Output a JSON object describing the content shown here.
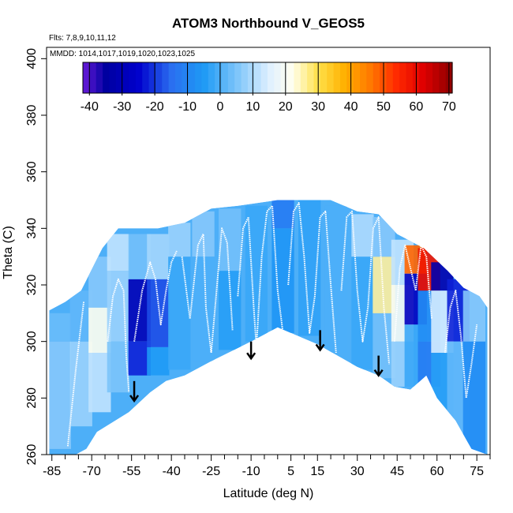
{
  "chart_data": {
    "type": "heatmap",
    "title": "ATOM3 Northbound V_GEOS5",
    "flights_label": "Flts: 7,8,9,10,11,12",
    "dates_label": "MMDD: 1014,1017,1019,1020,1023,1025",
    "xlabel": "Latitude (deg N)",
    "ylabel": "Theta (C)",
    "xlim": [
      -87,
      80
    ],
    "ylim": [
      260,
      404
    ],
    "x_ticks": [
      "-85",
      "-70",
      "-55",
      "-40",
      "-25",
      "-10",
      "5",
      "15",
      "30",
      "45",
      "60",
      "75"
    ],
    "x_tick_values": [
      -85,
      -70,
      -55,
      -40,
      -25,
      -10,
      5,
      15,
      30,
      45,
      60,
      75
    ],
    "y_ticks": [
      "260",
      "280",
      "300",
      "320",
      "340",
      "360",
      "380",
      "400"
    ],
    "y_tick_values": [
      260,
      280,
      300,
      320,
      340,
      360,
      380,
      400
    ],
    "colorbar": {
      "range": [
        -42,
        71
      ],
      "ticks": [
        "-40",
        "-30",
        "-20",
        "-10",
        "0",
        "10",
        "20",
        "30",
        "40",
        "50",
        "60",
        "70"
      ],
      "tick_values": [
        -40,
        -30,
        -20,
        -10,
        0,
        10,
        20,
        30,
        40,
        50,
        60,
        70
      ],
      "stops": [
        {
          "v": -42,
          "c": "#6a1bd9"
        },
        {
          "v": -35,
          "c": "#0000a0"
        },
        {
          "v": -25,
          "c": "#0000cc"
        },
        {
          "v": -15,
          "c": "#2a6ef0"
        },
        {
          "v": -5,
          "c": "#1e9af5"
        },
        {
          "v": 5,
          "c": "#7cc4fa"
        },
        {
          "v": 15,
          "c": "#dff0ff"
        },
        {
          "v": 22,
          "c": "#fffff0"
        },
        {
          "v": 30,
          "c": "#ffe14a"
        },
        {
          "v": 38,
          "c": "#ffb000"
        },
        {
          "v": 46,
          "c": "#ff7800"
        },
        {
          "v": 54,
          "c": "#ff2a00"
        },
        {
          "v": 62,
          "c": "#e00000"
        },
        {
          "v": 71,
          "c": "#8b0000"
        }
      ]
    },
    "envelope_top": [
      [
        -86,
        311
      ],
      [
        -80,
        314
      ],
      [
        -74,
        318
      ],
      [
        -66,
        333
      ],
      [
        -60,
        340
      ],
      [
        -45,
        340
      ],
      [
        -35,
        342
      ],
      [
        -25,
        347
      ],
      [
        -15,
        348
      ],
      [
        0,
        350
      ],
      [
        20,
        350
      ],
      [
        30,
        346
      ],
      [
        38,
        345
      ],
      [
        45,
        338
      ],
      [
        55,
        333
      ],
      [
        64,
        325
      ],
      [
        70,
        319
      ],
      [
        76,
        316
      ],
      [
        79,
        312
      ]
    ],
    "envelope_bottom": [
      [
        79,
        260
      ],
      [
        76,
        261
      ],
      [
        73,
        262
      ],
      [
        67,
        272
      ],
      [
        60,
        280
      ],
      [
        56,
        288
      ],
      [
        50,
        283
      ],
      [
        44,
        284
      ],
      [
        38,
        288
      ],
      [
        30,
        291
      ],
      [
        15,
        299
      ],
      [
        0,
        305
      ],
      [
        -10,
        300
      ],
      [
        -25,
        293
      ],
      [
        -35,
        288
      ],
      [
        -42,
        286
      ],
      [
        -48,
        282
      ],
      [
        -56,
        275
      ],
      [
        -68,
        268
      ],
      [
        -72,
        262
      ],
      [
        -76,
        260
      ],
      [
        -86,
        260
      ]
    ],
    "field": [
      {
        "lon": -82,
        "th": [
          262,
          300
        ],
        "v": 6
      },
      {
        "lon": -82,
        "th": [
          300,
          310
        ],
        "v": 3
      },
      {
        "lon": -74,
        "th": [
          270,
          300
        ],
        "v": 8
      },
      {
        "lon": -74,
        "th": [
          300,
          318
        ],
        "v": 2
      },
      {
        "lon": -67,
        "th": [
          275,
          296
        ],
        "v": 12
      },
      {
        "lon": -67,
        "th": [
          296,
          312
        ],
        "v": 22
      },
      {
        "lon": -67,
        "th": [
          312,
          330
        ],
        "v": 6
      },
      {
        "lon": -60,
        "th": [
          282,
          300
        ],
        "v": 5
      },
      {
        "lon": -60,
        "th": [
          300,
          325
        ],
        "v": 8
      },
      {
        "lon": -60,
        "th": [
          325,
          338
        ],
        "v": 12
      },
      {
        "lon": -52,
        "th": [
          288,
          300
        ],
        "v": -22
      },
      {
        "lon": -52,
        "th": [
          300,
          322
        ],
        "v": -30
      },
      {
        "lon": -52,
        "th": [
          322,
          338
        ],
        "v": 4
      },
      {
        "lon": -45,
        "th": [
          288,
          298
        ],
        "v": -5
      },
      {
        "lon": -45,
        "th": [
          298,
          322
        ],
        "v": -18
      },
      {
        "lon": -45,
        "th": [
          322,
          338
        ],
        "v": 9
      },
      {
        "lon": -37,
        "th": [
          290,
          330
        ],
        "v": -2
      },
      {
        "lon": -37,
        "th": [
          330,
          342
        ],
        "v": 8
      },
      {
        "lon": -28,
        "th": [
          293,
          330
        ],
        "v": 0
      },
      {
        "lon": -28,
        "th": [
          330,
          346
        ],
        "v": 6
      },
      {
        "lon": -18,
        "th": [
          297,
          325
        ],
        "v": -4
      },
      {
        "lon": -18,
        "th": [
          325,
          347
        ],
        "v": 4
      },
      {
        "lon": -8,
        "th": [
          300,
          348
        ],
        "v": -2
      },
      {
        "lon": 2,
        "th": [
          303,
          340
        ],
        "v": -6
      },
      {
        "lon": 2,
        "th": [
          340,
          350
        ],
        "v": -12
      },
      {
        "lon": 12,
        "th": [
          302,
          350
        ],
        "v": -3
      },
      {
        "lon": 22,
        "th": [
          296,
          348
        ],
        "v": 0
      },
      {
        "lon": 32,
        "th": [
          290,
          330
        ],
        "v": -2
      },
      {
        "lon": 32,
        "th": [
          330,
          345
        ],
        "v": 10
      },
      {
        "lon": 40,
        "th": [
          287,
          310
        ],
        "v": 4
      },
      {
        "lon": 40,
        "th": [
          310,
          330
        ],
        "v": 26
      },
      {
        "lon": 40,
        "th": [
          330,
          344
        ],
        "v": 6
      },
      {
        "lon": 47,
        "th": [
          284,
          300
        ],
        "v": 8
      },
      {
        "lon": 47,
        "th": [
          300,
          320
        ],
        "v": 20
      },
      {
        "lon": 47,
        "th": [
          320,
          336
        ],
        "v": 12
      },
      {
        "lon": 52,
        "th": [
          284,
          306
        ],
        "v": -2
      },
      {
        "lon": 52,
        "th": [
          306,
          324
        ],
        "v": -28
      },
      {
        "lon": 52,
        "th": [
          324,
          334
        ],
        "v": 48
      },
      {
        "lon": 57,
        "th": [
          284,
          300
        ],
        "v": -12
      },
      {
        "lon": 57,
        "th": [
          300,
          318
        ],
        "v": -8
      },
      {
        "lon": 57,
        "th": [
          318,
          333
        ],
        "v": 58
      },
      {
        "lon": 62,
        "th": [
          270,
          296
        ],
        "v": -4
      },
      {
        "lon": 62,
        "th": [
          296,
          318
        ],
        "v": 14
      },
      {
        "lon": 62,
        "th": [
          318,
          328
        ],
        "v": -32
      },
      {
        "lon": 68,
        "th": [
          264,
          300
        ],
        "v": 2
      },
      {
        "lon": 68,
        "th": [
          300,
          322
        ],
        "v": -22
      },
      {
        "lon": 74,
        "th": [
          260,
          300
        ],
        "v": -8
      },
      {
        "lon": 74,
        "th": [
          300,
          318
        ],
        "v": 6
      }
    ],
    "flight_tracks": [
      [
        [
          -79,
          263
        ],
        [
          -76,
          290
        ],
        [
          -73,
          314
        ]
      ],
      [
        [
          -64,
          300
        ],
        [
          -62,
          316
        ],
        [
          -60,
          322
        ],
        [
          -58,
          318
        ],
        [
          -57,
          295
        ],
        [
          -56,
          282
        ]
      ],
      [
        [
          -54,
          300
        ],
        [
          -51,
          318
        ],
        [
          -48,
          328
        ],
        [
          -46,
          322
        ],
        [
          -44,
          306
        ],
        [
          -42,
          318
        ],
        [
          -40,
          328
        ],
        [
          -38,
          332
        ]
      ],
      [
        [
          -36,
          330
        ],
        [
          -33,
          308
        ],
        [
          -30,
          334
        ],
        [
          -28,
          338
        ],
        [
          -27,
          312
        ],
        [
          -25,
          296
        ],
        [
          -23,
          318
        ],
        [
          -21,
          340
        ],
        [
          -19,
          335
        ],
        [
          -17,
          304
        ]
      ],
      [
        [
          -15,
          316
        ],
        [
          -13,
          340
        ],
        [
          -11,
          344
        ],
        [
          -9,
          312
        ],
        [
          -8,
          298
        ],
        [
          -6,
          330
        ],
        [
          -4,
          346
        ],
        [
          -2,
          348
        ],
        [
          0,
          318
        ],
        [
          2,
          303
        ]
      ],
      [
        [
          4,
          320
        ],
        [
          6,
          346
        ],
        [
          8,
          349
        ],
        [
          10,
          330
        ],
        [
          12,
          303
        ],
        [
          14,
          316
        ],
        [
          16,
          344
        ],
        [
          18,
          346
        ],
        [
          20,
          320
        ],
        [
          22,
          296
        ]
      ],
      [
        [
          24,
          318
        ],
        [
          26,
          344
        ],
        [
          28,
          346
        ],
        [
          30,
          318
        ],
        [
          32,
          300
        ],
        [
          34,
          312
        ],
        [
          36,
          340
        ],
        [
          38,
          344
        ],
        [
          40,
          312
        ],
        [
          42,
          292
        ]
      ],
      [
        [
          44,
          300
        ],
        [
          46,
          326
        ],
        [
          48,
          334
        ],
        [
          50,
          326
        ],
        [
          52,
          318
        ],
        [
          54,
          334
        ],
        [
          56,
          330
        ],
        [
          58,
          308
        ]
      ],
      [
        [
          63,
          296
        ],
        [
          65,
          312
        ],
        [
          67,
          318
        ],
        [
          69,
          302
        ],
        [
          71,
          280
        ],
        [
          73,
          292
        ],
        [
          75,
          306
        ]
      ]
    ],
    "arrows": [
      {
        "x": -54,
        "y_top": 286,
        "y_tip": 279
      },
      {
        "x": -10,
        "y_top": 300,
        "y_tip": 294
      },
      {
        "x": 16,
        "y_top": 304,
        "y_tip": 297
      },
      {
        "x": 38,
        "y_top": 295,
        "y_tip": 288
      }
    ]
  }
}
